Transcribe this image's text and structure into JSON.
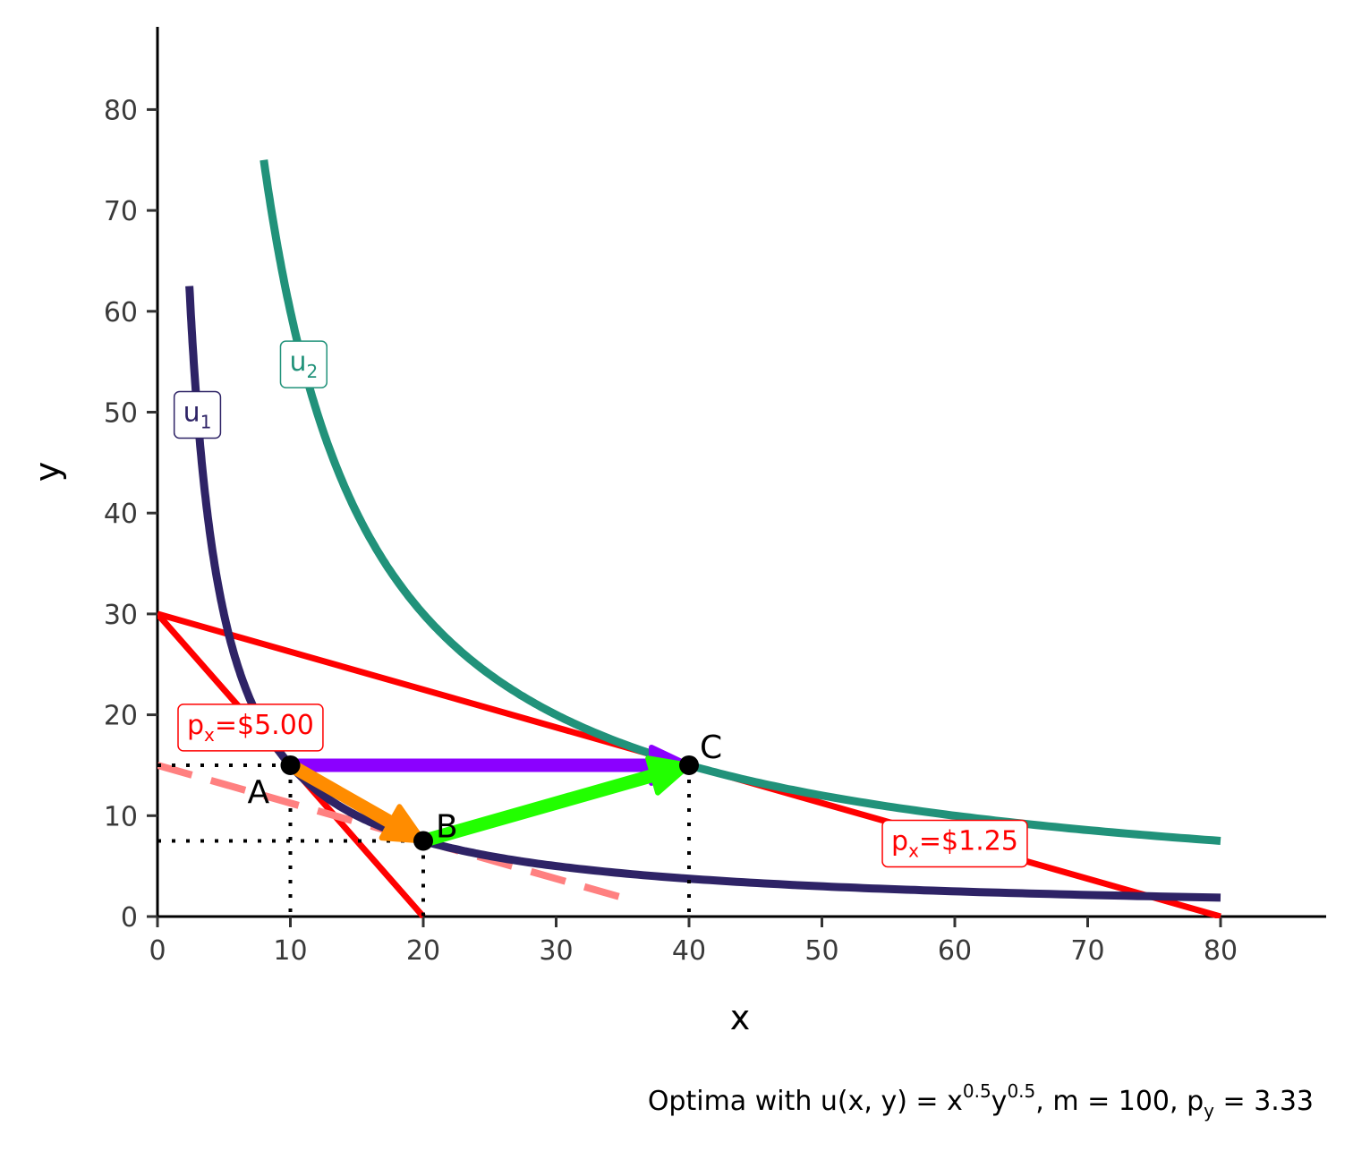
{
  "chart_data": {
    "type": "line",
    "xlabel": "x",
    "ylabel": "y",
    "xlim": [
      0,
      88
    ],
    "ylim": [
      0,
      88
    ],
    "x_ticks": [
      "0",
      "10",
      "20",
      "30",
      "40",
      "50",
      "60",
      "70",
      "80"
    ],
    "y_ticks": [
      "0",
      "10",
      "20",
      "30",
      "40",
      "50",
      "60",
      "70",
      "80"
    ],
    "grid": false,
    "caption": {
      "prefix": "Optima with u(x, y) = x",
      "exp1": "0.5",
      "mid": "y",
      "exp2": "0.5",
      "suffix": ", m = 100, p",
      "sub": "y",
      "end": " = 3.33"
    },
    "utility_curves": [
      {
        "label_main": "u",
        "label_sub": "1",
        "level": 150,
        "x_range": [
          2.4,
          80
        ],
        "color": "#2e2366",
        "label_at": [
          3,
          50
        ]
      },
      {
        "label_main": "u",
        "label_sub": "2",
        "level": 600,
        "x_range": [
          8,
          80
        ],
        "color": "#21927a",
        "label_at": [
          11,
          55
        ]
      }
    ],
    "budget_lines": [
      {
        "label_main": "p",
        "label_sub": "x",
        "label_rest": "=$5.00",
        "x1": 0,
        "y1": 30,
        "x2": 20,
        "y2": 0,
        "color": "#ff0000",
        "style": "solid",
        "label_at": [
          7,
          19
        ]
      },
      {
        "label_main": "p",
        "label_sub": "x",
        "label_rest": "=$1.25",
        "x1": 0,
        "y1": 30,
        "x2": 80,
        "y2": 0,
        "color": "#ff0000",
        "style": "solid",
        "label_at": [
          60,
          7.5
        ]
      },
      {
        "x1": 0,
        "y1": 15,
        "x2": 36,
        "y2": 1.5,
        "color": "#ff8080",
        "style": "dashed"
      }
    ],
    "points": [
      {
        "label": "A",
        "x": 10,
        "y": 15
      },
      {
        "label": "B",
        "x": 20,
        "y": 7.5
      },
      {
        "label": "C",
        "x": 40,
        "y": 15
      }
    ],
    "arrows": [
      {
        "from": "A",
        "to": "C",
        "color": "#8b00ff"
      },
      {
        "from": "A",
        "to": "B",
        "color": "#ff8c00"
      },
      {
        "from": "B",
        "to": "C",
        "color": "#22ff00"
      }
    ]
  }
}
